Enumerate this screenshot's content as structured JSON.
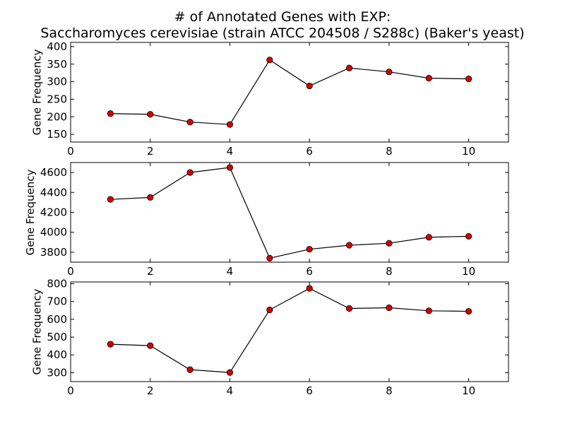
{
  "title": {
    "line1": "# of Annotated Genes with EXP:",
    "line2": "Saccharomyces cerevisiae (strain ATCC 204508 / S288c) (Baker's yeast)"
  },
  "colors": {
    "marker_fill": "#d40000",
    "line": "#000000",
    "axes": "#000000"
  },
  "chart_data": [
    {
      "type": "line",
      "ylabel": "Gene Frequency",
      "xlim": [
        0,
        11
      ],
      "ylim": [
        128,
        412
      ],
      "xticks": [
        0,
        2,
        4,
        6,
        8,
        10
      ],
      "yticks": [
        150,
        200,
        250,
        300,
        350,
        400
      ],
      "x": [
        1,
        2,
        3,
        4,
        5,
        6,
        7,
        8,
        9,
        10
      ],
      "y": [
        209,
        207,
        185,
        178,
        362,
        288,
        339,
        328,
        310,
        308
      ]
    },
    {
      "type": "line",
      "ylabel": "Gene Frequency",
      "xlim": [
        0,
        11
      ],
      "ylim": [
        3700,
        4700
      ],
      "xticks": [
        0,
        2,
        4,
        6,
        8,
        10
      ],
      "yticks": [
        3800,
        4000,
        4200,
        4400,
        4600
      ],
      "x": [
        1,
        2,
        3,
        4,
        5,
        6,
        7,
        8,
        9,
        10
      ],
      "y": [
        4330,
        4350,
        4600,
        4650,
        3740,
        3830,
        3870,
        3890,
        3950,
        3960
      ]
    },
    {
      "type": "line",
      "ylabel": "Gene Frequency",
      "xlim": [
        0,
        11
      ],
      "ylim": [
        250,
        810
      ],
      "xticks": [
        0,
        2,
        4,
        6,
        8,
        10
      ],
      "yticks": [
        300,
        400,
        500,
        600,
        700,
        800
      ],
      "x": [
        1,
        2,
        3,
        4,
        5,
        6,
        7,
        8,
        9,
        10
      ],
      "y": [
        460,
        452,
        317,
        301,
        653,
        774,
        661,
        665,
        648,
        645
      ]
    }
  ]
}
